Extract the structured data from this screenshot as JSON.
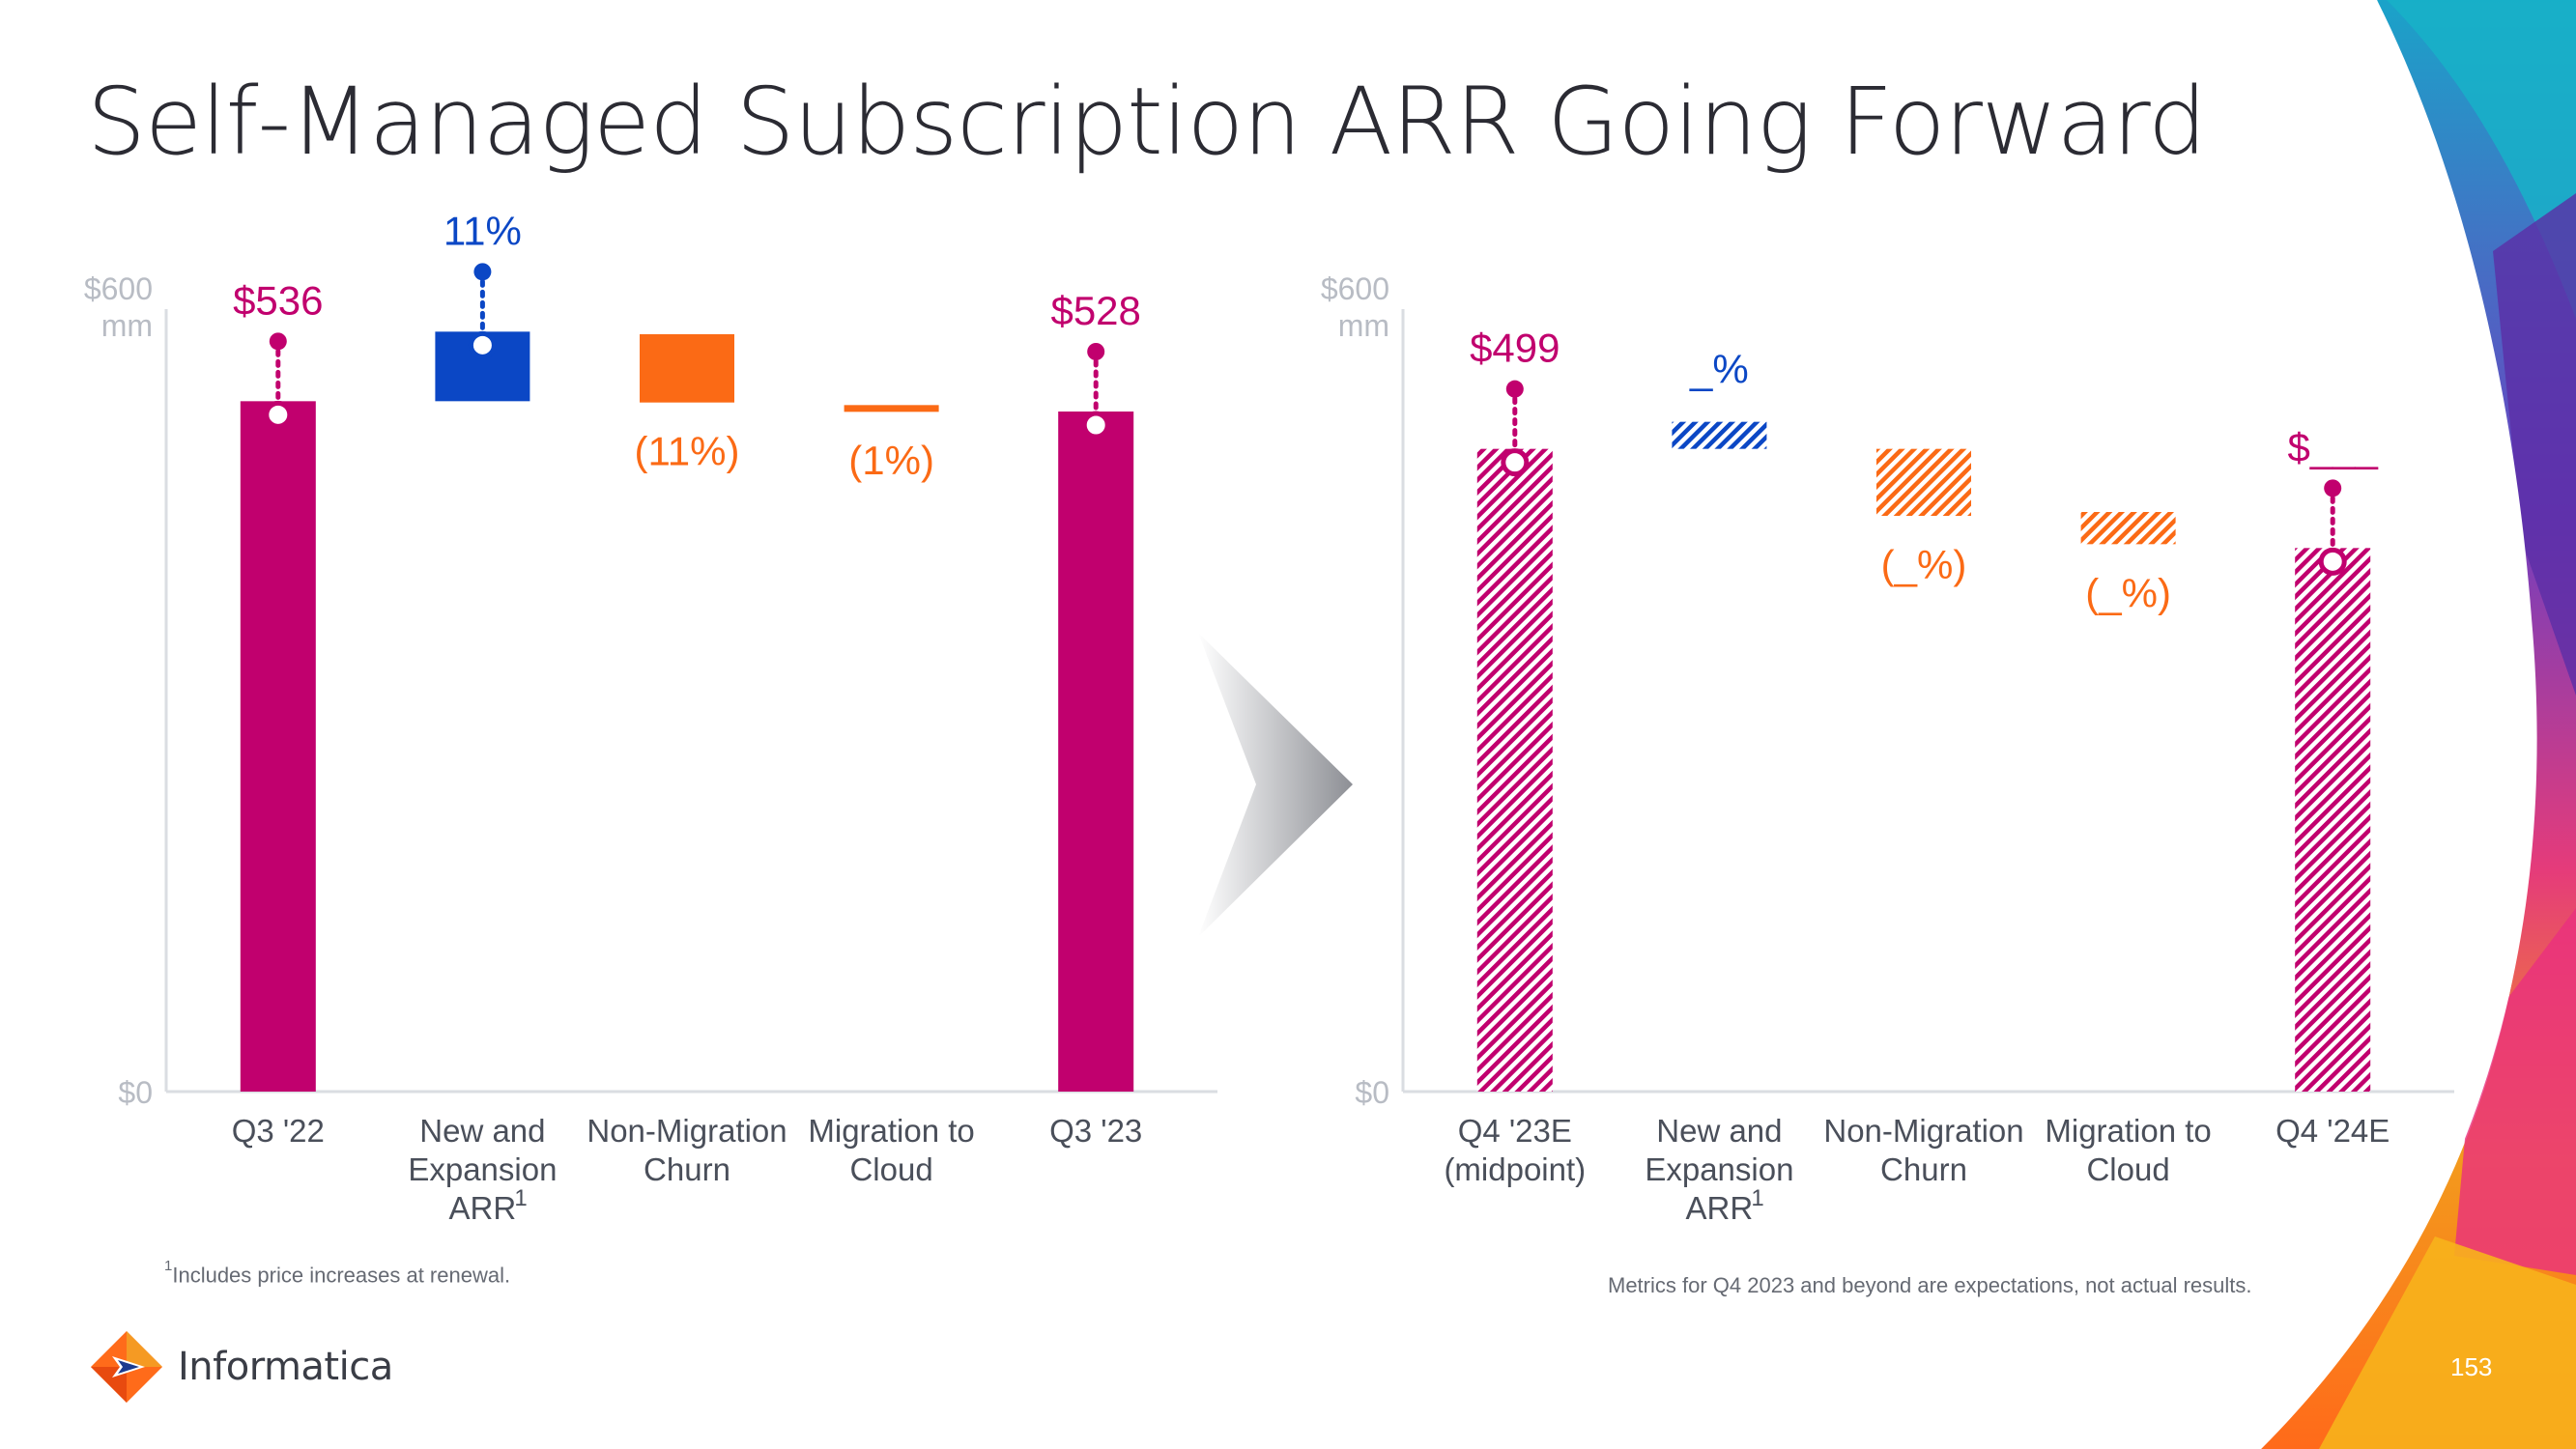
{
  "slide": {
    "title": "Self-Managed Subscription ARR Going Forward",
    "footnote_marker": "1",
    "footnote": "Includes price increases at renewal.",
    "disclaimer": "Metrics for Q4 2023 and beyond are expectations, not actual results.",
    "logo_text": "Informatica",
    "page_number": "153"
  },
  "colors": {
    "magenta": "#c1006e",
    "blue": "#0b47c5",
    "orange": "#fb6a15",
    "axis_text": "#b8bcc4",
    "label_text": "#4a4f5a",
    "gray_arrow": "#9a9ca2"
  },
  "chart_data": [
    {
      "type": "bar",
      "subtype": "waterfall",
      "style": "solid",
      "axis_top_label": "$600",
      "axis_unit_label": "mm",
      "axis_bottom_label": "$0",
      "ylim": [
        0,
        600
      ],
      "categories": [
        [
          "Q3 '22"
        ],
        [
          "New and",
          "Expansion",
          "ARR"
        ],
        [
          "Non-Migration",
          "Churn"
        ],
        [
          "Migration to",
          "Cloud"
        ],
        [
          "Q3 '23"
        ]
      ],
      "bars": [
        {
          "kind": "total",
          "from": 0,
          "to": 536,
          "label": "$536",
          "label_color": "#c1006e",
          "color": "#c1006e",
          "label_pos": "above",
          "connector": true
        },
        {
          "kind": "increase",
          "from": 536,
          "to": 590,
          "label": "11%",
          "label_color": "#0b47c5",
          "color": "#0b47c5",
          "label_pos": "above",
          "connector": true,
          "superscript": "1"
        },
        {
          "kind": "decrease",
          "from": 588,
          "to": 535,
          "label": "(11%)",
          "label_color": "#fb6a15",
          "color": "#fb6a15",
          "label_pos": "below",
          "connector": false
        },
        {
          "kind": "decrease",
          "from": 533,
          "to": 528,
          "label": "(1%)",
          "label_color": "#fb6a15",
          "color": "#fb6a15",
          "label_pos": "below",
          "connector": false
        },
        {
          "kind": "total",
          "from": 0,
          "to": 528,
          "label": "$528",
          "label_color": "#c1006e",
          "color": "#c1006e",
          "label_pos": "above",
          "connector": true
        }
      ]
    },
    {
      "type": "bar",
      "subtype": "waterfall",
      "style": "hatched",
      "axis_top_label": "$600",
      "axis_unit_label": "mm",
      "axis_bottom_label": "$0",
      "ylim": [
        0,
        600
      ],
      "categories": [
        [
          "Q4 '23E",
          "(midpoint)"
        ],
        [
          "New and",
          "Expansion",
          "ARR"
        ],
        [
          "Non-Migration",
          "Churn"
        ],
        [
          "Migration to",
          "Cloud"
        ],
        [
          "Q4 '24E"
        ]
      ],
      "bars": [
        {
          "kind": "total",
          "from": 0,
          "to": 499,
          "label": "$499",
          "label_color": "#c1006e",
          "color": "#c1006e",
          "label_pos": "above",
          "connector": true
        },
        {
          "kind": "increase",
          "from": 499,
          "to": 520,
          "label": "_%",
          "label_color": "#0b47c5",
          "color": "#0b47c5",
          "label_pos": "above",
          "connector": false,
          "superscript": "1"
        },
        {
          "kind": "decrease",
          "from": 499,
          "to": 447,
          "label": "(_%)",
          "label_color": "#fb6a15",
          "color": "#fb6a15",
          "label_pos": "below",
          "connector": false
        },
        {
          "kind": "decrease",
          "from": 450,
          "to": 425,
          "label": "(_%)",
          "label_color": "#fb6a15",
          "color": "#fb6a15",
          "label_pos": "below",
          "connector": false
        },
        {
          "kind": "total",
          "from": 0,
          "to": 422,
          "label": "$___",
          "label_color": "#c1006e",
          "color": "#c1006e",
          "label_pos": "above",
          "connector": true
        }
      ]
    }
  ]
}
